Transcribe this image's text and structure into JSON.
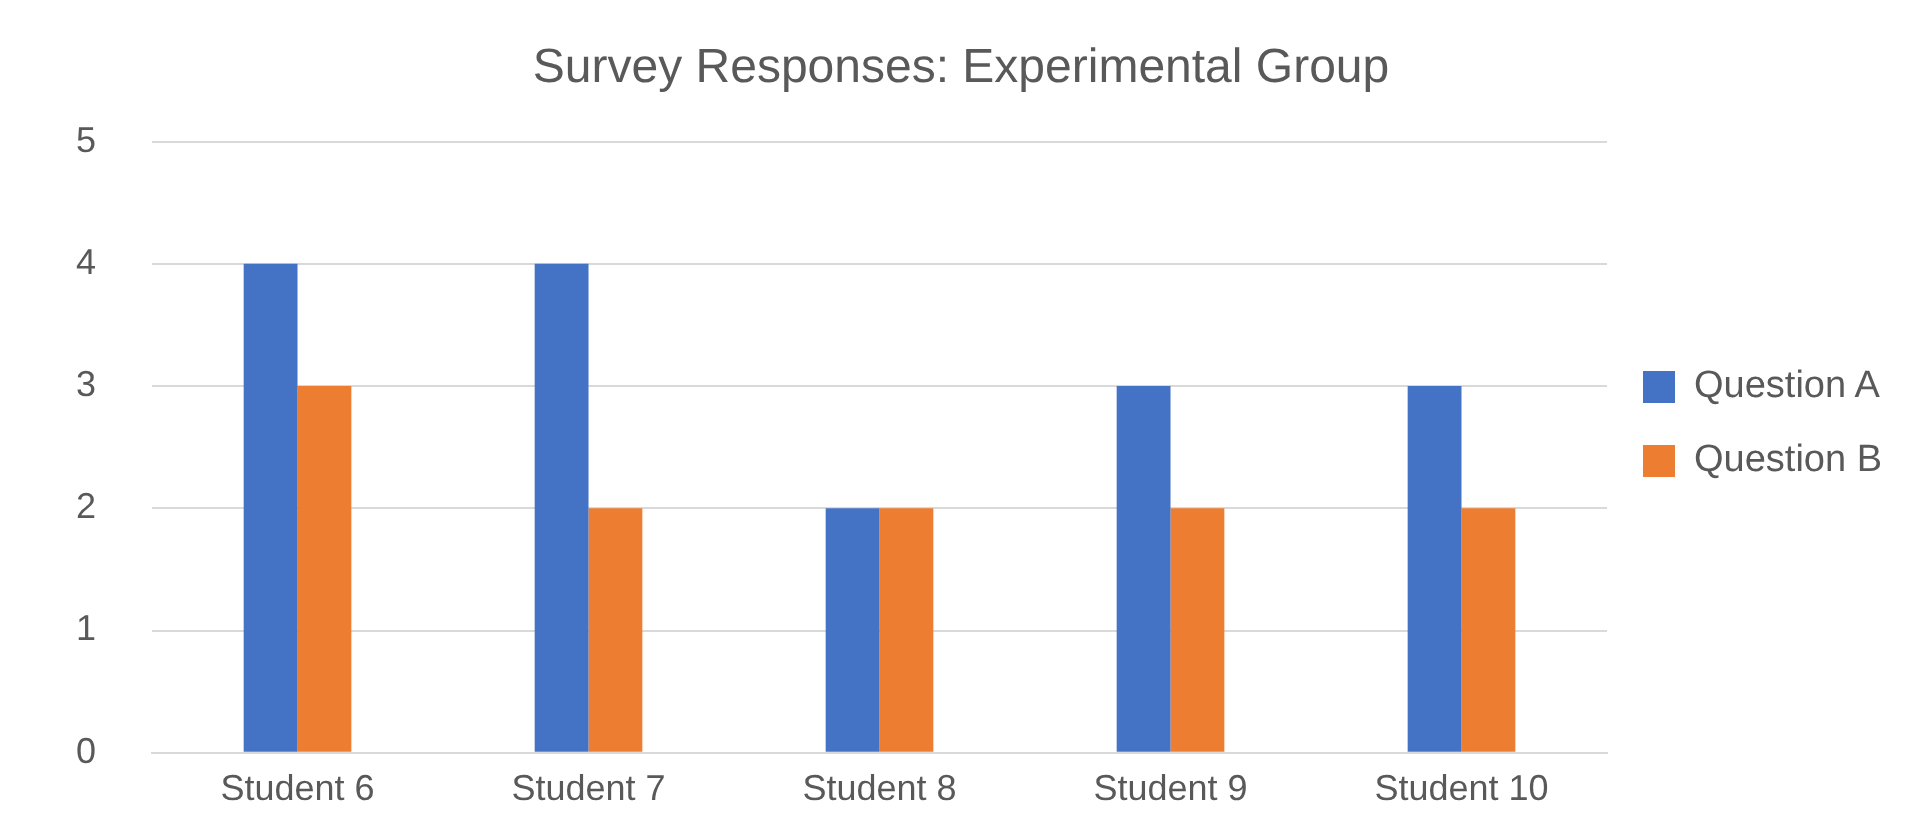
{
  "chart_data": {
    "type": "bar",
    "title": "Survey Responses: Experimental Group",
    "categories": [
      "Student 6",
      "Student 7",
      "Student 8",
      "Student 9",
      "Student 10"
    ],
    "series": [
      {
        "name": "Question A",
        "color": "#4472c4",
        "values": [
          4,
          4,
          2,
          3,
          3
        ]
      },
      {
        "name": "Question B",
        "color": "#ed7d31",
        "values": [
          3,
          2,
          2,
          2,
          2
        ]
      }
    ],
    "ylim": [
      0,
      5
    ],
    "yticks": [
      0,
      1,
      2,
      3,
      4,
      5
    ],
    "grid": "y",
    "legend": "right"
  }
}
